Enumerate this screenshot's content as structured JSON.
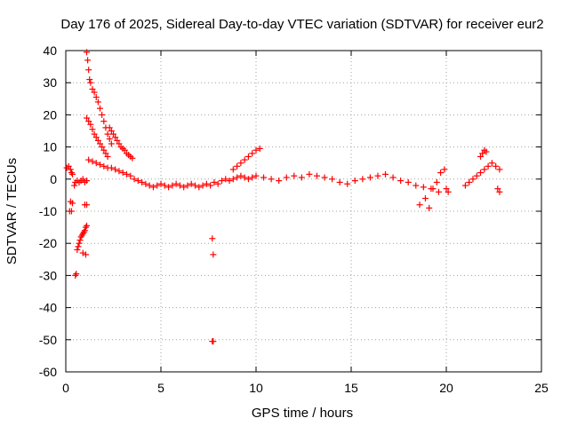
{
  "chart_data": {
    "type": "scatter",
    "title": "Day 176 of 2025, Sidereal Day-to-day VTEC variation (SDTVAR) for receiver eur2",
    "xlabel": "GPS time / hours",
    "ylabel": "SDTVAR / TECUs",
    "xlim": [
      0,
      25
    ],
    "ylim": [
      -60,
      40
    ],
    "x_ticks": [
      0,
      5,
      10,
      15,
      20,
      25
    ],
    "x_tick_labels": [
      "0",
      "5",
      "10",
      "15",
      "20",
      "25"
    ],
    "y_ticks": [
      -60,
      -50,
      -40,
      -30,
      -20,
      -10,
      0,
      10,
      20,
      30,
      40
    ],
    "y_tick_labels": [
      "-60",
      "-50",
      "-40",
      "-30",
      "-20",
      "-10",
      "0",
      "10",
      "20",
      "30",
      "40"
    ],
    "grid": true,
    "marker": "plus",
    "color": "#ff0000",
    "series": [
      {
        "name": "SDTVAR",
        "x": [
          0.05,
          0.15,
          0.25,
          0.3,
          0.35,
          0.2,
          0.3,
          0.25,
          0.35,
          0.45,
          0.5,
          0.6,
          0.7,
          0.8,
          0.9,
          1.0,
          1.1,
          0.5,
          0.55,
          0.6,
          0.65,
          0.7,
          0.75,
          0.8,
          0.85,
          0.9,
          0.95,
          1.0,
          1.05,
          1.1,
          0.9,
          1.05,
          1.0,
          1.1,
          1.1,
          1.15,
          1.2,
          1.25,
          1.3,
          1.4,
          1.5,
          1.6,
          1.7,
          1.8,
          1.9,
          2.0,
          2.1,
          2.2,
          2.3,
          2.4,
          1.1,
          1.2,
          1.3,
          1.4,
          1.5,
          1.6,
          1.7,
          1.8,
          1.9,
          2.0,
          2.1,
          2.2,
          2.3,
          2.4,
          2.5,
          2.6,
          2.7,
          2.8,
          2.9,
          3.0,
          3.1,
          3.2,
          3.3,
          3.4,
          3.5,
          1.2,
          1.4,
          1.6,
          1.8,
          2.0,
          2.2,
          2.4,
          2.6,
          2.8,
          3.0,
          3.2,
          3.4,
          3.6,
          3.8,
          4.0,
          4.2,
          4.4,
          4.6,
          4.8,
          5.0,
          5.2,
          5.4,
          5.6,
          5.8,
          6.0,
          6.2,
          6.4,
          6.6,
          6.8,
          7.0,
          7.2,
          7.4,
          7.6,
          7.8,
          8.0,
          8.2,
          8.4,
          8.6,
          8.8,
          9.0,
          9.2,
          9.4,
          9.6,
          9.8,
          10.0,
          8.8,
          9.0,
          9.2,
          9.4,
          9.6,
          9.8,
          10.0,
          10.2,
          7.7,
          7.75,
          7.7,
          7.75,
          10.4,
          10.8,
          11.2,
          11.6,
          12.0,
          12.4,
          12.8,
          13.2,
          13.6,
          14.0,
          14.4,
          14.8,
          15.2,
          15.6,
          16.0,
          16.4,
          16.8,
          17.2,
          17.6,
          18.0,
          18.4,
          18.8,
          19.2,
          19.6,
          20.0,
          18.6,
          18.9,
          19.1,
          19.3,
          19.5,
          19.7,
          19.9,
          20.1,
          21.0,
          21.2,
          21.4,
          21.6,
          21.8,
          22.0,
          22.2,
          22.4,
          22.6,
          22.8,
          21.8,
          21.9,
          22.0,
          22.1,
          22.7,
          22.8
        ],
        "y": [
          3.5,
          4,
          3,
          2,
          1.5,
          -10,
          -10,
          -7,
          -7.5,
          -2,
          -1,
          -0.5,
          -1,
          -0.5,
          0,
          -1,
          -0.5,
          -30,
          -29.5,
          -22,
          -21,
          -20,
          -19,
          -18,
          -17.5,
          -17,
          -16.5,
          -16,
          -15,
          -14.5,
          -23,
          -23.5,
          -8,
          -8,
          39.5,
          37,
          34,
          31,
          30,
          28,
          27,
          25.5,
          24,
          22,
          20,
          18,
          16,
          14,
          12.5,
          11,
          19,
          18,
          17,
          15.5,
          14,
          13,
          12,
          11,
          10,
          9,
          8,
          7,
          16,
          15,
          14,
          13,
          12,
          11,
          10,
          9.5,
          9,
          8,
          7.5,
          7,
          6.5,
          6,
          5.5,
          5,
          4.5,
          4,
          3.5,
          3.5,
          3,
          2.5,
          2,
          1.5,
          1,
          0,
          -0.5,
          -1,
          -1.5,
          -2,
          -2.5,
          -2,
          -1.5,
          -2,
          -2.5,
          -2,
          -1.5,
          -2,
          -2.5,
          -2,
          -1.5,
          -2,
          -2.5,
          -2,
          -1.5,
          -2,
          -1,
          -1.5,
          -0.5,
          0,
          -0.5,
          0,
          0.5,
          1,
          0.5,
          0,
          0.5,
          1,
          3,
          4,
          5,
          6,
          7,
          8,
          9,
          9.5,
          -18.5,
          -23.5,
          -50.5,
          -50.5,
          0.5,
          0,
          -0.5,
          0.5,
          1,
          0.5,
          1.5,
          1,
          0.5,
          0,
          -1,
          -1.5,
          -0.5,
          0,
          0.5,
          1,
          1.5,
          0.5,
          -0.5,
          -1,
          -2,
          -2.5,
          -3,
          -4,
          -3,
          -8,
          -6,
          -9,
          -3,
          -1,
          2,
          3,
          -4,
          -2,
          -1,
          0,
          1,
          2,
          3,
          4,
          5,
          4,
          3,
          7,
          8,
          9,
          8.5,
          -3,
          -4
        ]
      }
    ]
  }
}
